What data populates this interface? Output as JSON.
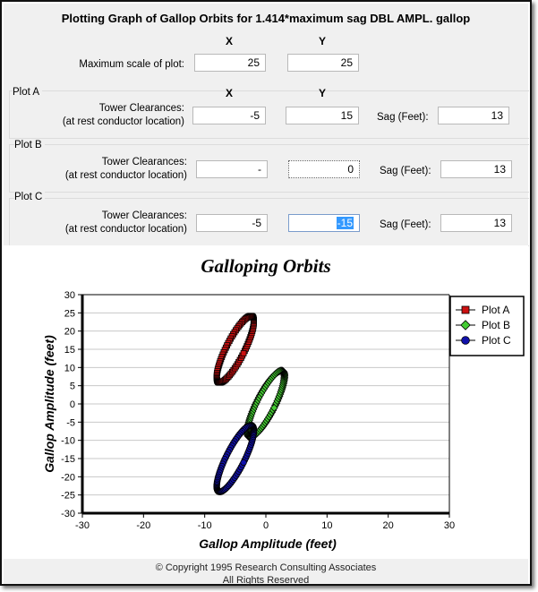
{
  "form": {
    "title": "Plotting Graph of Gallop Orbits for 1.414*maximum sag DBL AMPL. gallop",
    "col_x": "X",
    "col_y": "Y",
    "max_scale_label": "Maximum scale of plot:",
    "max_scale_x": "25",
    "max_scale_y": "25",
    "tower_label_1": "Tower Clearances:",
    "tower_label_2": "(at rest conductor location)",
    "sag_label": "Sag (Feet):",
    "plot_a": {
      "name": "Plot A",
      "x": "-5",
      "y": "15",
      "sag": "13"
    },
    "plot_b": {
      "name": "Plot B",
      "x": "-",
      "y": "0",
      "sag": "13"
    },
    "plot_c": {
      "name": "Plot C",
      "x": "-5",
      "y": "-15",
      "sag": "13"
    }
  },
  "chart_data": {
    "type": "line",
    "title": "Galloping Orbits",
    "xlabel": "Gallop Amplitude (feet)",
    "ylabel": "Gallop Amplitude (feet)",
    "xlim": [
      -30,
      30
    ],
    "ylim": [
      -30,
      30
    ],
    "xticks": [
      "-30",
      "-20",
      "-10",
      "0",
      "10",
      "20",
      "30"
    ],
    "yticks": [
      "30",
      "25",
      "20",
      "15",
      "10",
      "5",
      "0",
      "-5",
      "-10",
      "-15",
      "-20",
      "-25",
      "-30"
    ],
    "grid": true,
    "legend_position": "top-right",
    "series": [
      {
        "name": "Plot A",
        "color": "#cc1111",
        "marker": "square",
        "center": [
          -5,
          15
        ],
        "semi_axes": [
          1.6,
          9.5
        ],
        "tilt_deg": 16
      },
      {
        "name": "Plot B",
        "color": "#44cc33",
        "marker": "diamond",
        "center": [
          0,
          0
        ],
        "semi_axes": [
          1.6,
          9.5
        ],
        "tilt_deg": 16
      },
      {
        "name": "Plot C",
        "color": "#1111aa",
        "marker": "circle",
        "center": [
          -5,
          -15
        ],
        "semi_axes": [
          1.6,
          9.5
        ],
        "tilt_deg": 16
      }
    ]
  },
  "footer": {
    "copyright": "© Copyright 1995 Research Consulting Associates",
    "rights": "All Rights Reserved"
  }
}
